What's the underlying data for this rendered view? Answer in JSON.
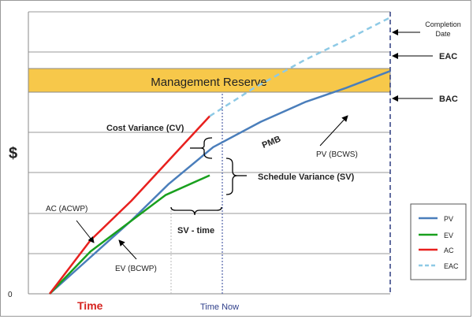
{
  "chart_data": {
    "type": "line",
    "title": "",
    "ylabel": "$",
    "y_origin_label": "0",
    "x_start_label": "Time",
    "x_time_now_label": "Time Now",
    "grid": "horizontal",
    "legend": "bottom-right",
    "colors": {
      "PV": "#4a7ebb",
      "EV": "#19a01e",
      "AC": "#e8201e",
      "EAC": "#8ecae6",
      "reserve_fill": "#f7c84a",
      "reserve_border": "#8a8a8a",
      "time_now_line": "#4f62a8",
      "completion_line": "#1f2f78"
    },
    "series": [
      {
        "name": "PV",
        "x": [
          0,
          0.12,
          0.24,
          0.35,
          0.48,
          0.62,
          0.75,
          0.87,
          1.0
        ],
        "y": [
          0,
          0.13,
          0.26,
          0.39,
          0.52,
          0.61,
          0.68,
          0.73,
          0.79
        ]
      },
      {
        "name": "EV",
        "x": [
          0,
          0.12,
          0.34,
          0.47
        ],
        "y": [
          0,
          0.15,
          0.35,
          0.42
        ]
      },
      {
        "name": "AC",
        "x": [
          0,
          0.12,
          0.24,
          0.47
        ],
        "y": [
          0,
          0.19,
          0.33,
          0.63
        ]
      },
      {
        "name": "EAC",
        "x": [
          0.47,
          0.6,
          0.75,
          0.87,
          1.0
        ],
        "y": [
          0.63,
          0.73,
          0.83,
          0.9,
          0.98
        ]
      }
    ],
    "management_reserve": {
      "label": "Management Reserve",
      "y_bottom": 0.84,
      "y_top": 0.93
    },
    "annotations": [
      {
        "name": "cv",
        "text": "Cost Variance (CV)"
      },
      {
        "name": "sv",
        "text": "Schedule Variance (SV)"
      },
      {
        "name": "sv-time",
        "text": "SV - time"
      },
      {
        "name": "pmb",
        "text": "PMB"
      },
      {
        "name": "pv-bcws",
        "text": "PV (BCWS)"
      },
      {
        "name": "ac-acwp",
        "text": "AC (ACWP)"
      },
      {
        "name": "ev-bcwp",
        "text": "EV (BCWP)"
      },
      {
        "name": "completion",
        "lines": [
          "Completion",
          "Date"
        ]
      },
      {
        "name": "eac",
        "text": "EAC"
      },
      {
        "name": "bac",
        "text": "BAC"
      }
    ]
  }
}
